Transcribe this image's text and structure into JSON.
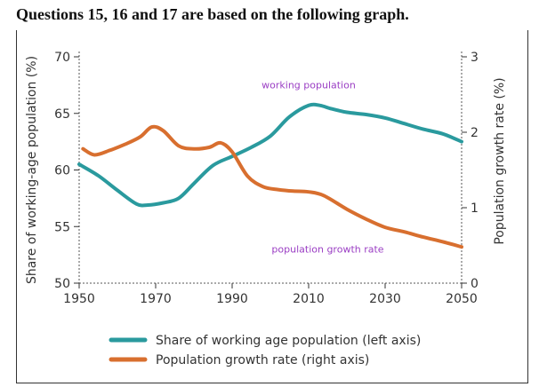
{
  "heading": "Questions 15, 16 and 17 are based on the following  graph.",
  "chart_data": {
    "type": "line",
    "x_ticks": [
      "1950",
      "1970",
      "1990",
      "2010",
      "2030",
      "2050"
    ],
    "xlim": [
      1950,
      2050
    ],
    "left_axis": {
      "label": "Share of working-age population (%)",
      "ylim": [
        50,
        70
      ],
      "ticks": [
        "50",
        "55",
        "60",
        "65",
        "70"
      ]
    },
    "right_axis": {
      "label": "Population growth rate (%)",
      "ylim": [
        0,
        3
      ],
      "ticks": [
        "0",
        "1",
        "2",
        "3"
      ]
    },
    "series": [
      {
        "name": "Share of working age population (left axis)",
        "axis": "left",
        "color": "#2a9a9e",
        "x": [
          1950,
          1955,
          1960,
          1965,
          1968,
          1972,
          1976,
          1980,
          1985,
          1990,
          1995,
          2000,
          2005,
          2010,
          2013,
          2016,
          2020,
          2025,
          2030,
          2035,
          2040,
          2045,
          2050
        ],
        "y": [
          60.5,
          59.5,
          58.2,
          57.0,
          56.9,
          57.1,
          57.5,
          58.8,
          60.4,
          61.2,
          62.0,
          63.0,
          64.7,
          65.7,
          65.7,
          65.4,
          65.1,
          64.9,
          64.6,
          64.1,
          63.6,
          63.2,
          62.5
        ]
      },
      {
        "name": "Population growth rate (right axis)",
        "axis": "right",
        "color": "#d86f2f",
        "x": [
          1951,
          1954,
          1958,
          1962,
          1966,
          1969,
          1972,
          1976,
          1980,
          1984,
          1987,
          1990,
          1994,
          1998,
          2002,
          2006,
          2010,
          2014,
          2020,
          2025,
          2030,
          2035,
          2040,
          2045,
          2050
        ],
        "y": [
          1.78,
          1.7,
          1.76,
          1.84,
          1.94,
          2.07,
          2.02,
          1.82,
          1.78,
          1.8,
          1.86,
          1.74,
          1.42,
          1.28,
          1.24,
          1.22,
          1.21,
          1.16,
          0.98,
          0.85,
          0.74,
          0.68,
          0.61,
          0.55,
          0.48
        ]
      }
    ],
    "annotations": [
      {
        "text": "working population",
        "x": 2010,
        "y_left": 67.2
      },
      {
        "text": "population growth rate",
        "x": 2015,
        "y_left": 52.7
      }
    ],
    "legend_position": "bottom-center"
  }
}
